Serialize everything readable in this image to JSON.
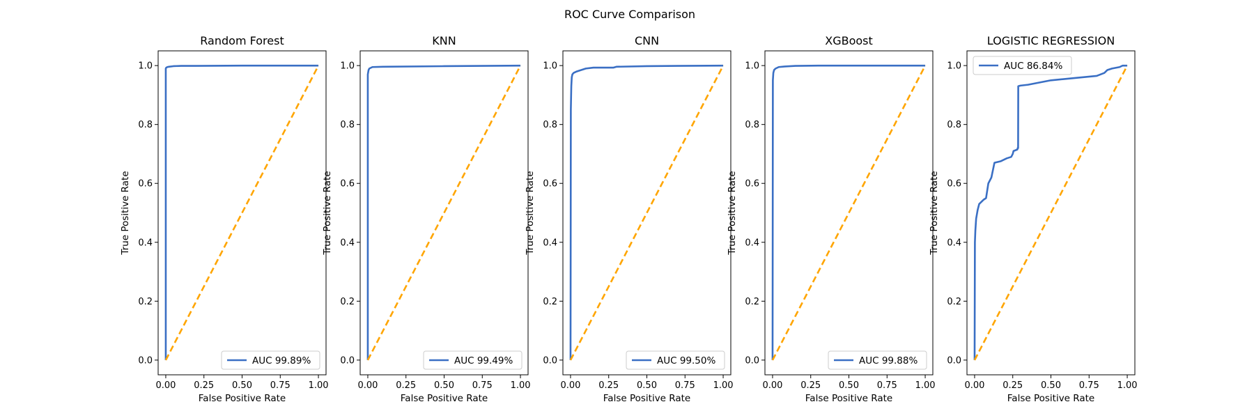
{
  "figure": {
    "suptitle": "ROC Curve Comparison"
  },
  "colors": {
    "roc": "#3a6fc4",
    "baseline": "#ffa500",
    "axes": "#000000",
    "legend_border": "#cccccc"
  },
  "chart_data": [
    {
      "type": "line",
      "title": "Random Forest",
      "xlabel": "False Positive Rate",
      "ylabel": "True Positive Rate",
      "xlim": [
        -0.05,
        1.05
      ],
      "ylim": [
        -0.05,
        1.05
      ],
      "xticks": [
        "0.00",
        "0.25",
        "0.50",
        "0.75",
        "1.00"
      ],
      "yticks": [
        "0.0",
        "0.2",
        "0.4",
        "0.6",
        "0.8",
        "1.0"
      ],
      "legend_position": "lower-right",
      "grid": false,
      "series": [
        {
          "name": "AUC 99.89%",
          "style": "solid",
          "x": [
            0,
            0,
            0.003,
            0.01,
            0.02,
            0.05,
            0.1,
            0.2,
            0.5,
            1.0
          ],
          "y": [
            0,
            0.99,
            0.993,
            0.995,
            0.996,
            0.998,
            0.999,
            0.999,
            1.0,
            1.0
          ]
        },
        {
          "name": "",
          "style": "dashed",
          "x": [
            0,
            1
          ],
          "y": [
            0,
            1
          ]
        }
      ]
    },
    {
      "type": "line",
      "title": "KNN",
      "xlabel": "False Positive Rate",
      "ylabel": "True Positive Rate",
      "xlim": [
        -0.05,
        1.05
      ],
      "ylim": [
        -0.05,
        1.05
      ],
      "xticks": [
        "0.00",
        "0.25",
        "0.50",
        "0.75",
        "1.00"
      ],
      "yticks": [
        "0.0",
        "0.2",
        "0.4",
        "0.6",
        "0.8",
        "1.0"
      ],
      "legend_position": "lower-right",
      "grid": false,
      "series": [
        {
          "name": "AUC 99.49%",
          "style": "solid",
          "x": [
            0,
            0,
            0.005,
            0.01,
            0.03,
            0.1,
            0.5,
            1.0
          ],
          "y": [
            0,
            0.97,
            0.985,
            0.99,
            0.995,
            0.996,
            0.998,
            1.0
          ]
        },
        {
          "name": "",
          "style": "dashed",
          "x": [
            0,
            1
          ],
          "y": [
            0,
            1
          ]
        }
      ]
    },
    {
      "type": "line",
      "title": "CNN",
      "xlabel": "False Positive Rate",
      "ylabel": "True Positive Rate",
      "xlim": [
        -0.05,
        1.05
      ],
      "ylim": [
        -0.05,
        1.05
      ],
      "xticks": [
        "0.00",
        "0.25",
        "0.50",
        "0.75",
        "1.00"
      ],
      "yticks": [
        "0.0",
        "0.2",
        "0.4",
        "0.6",
        "0.8",
        "1.0"
      ],
      "legend_position": "lower-right",
      "grid": false,
      "series": [
        {
          "name": "AUC 99.50%",
          "style": "solid",
          "x": [
            0,
            0.002,
            0.005,
            0.008,
            0.012,
            0.02,
            0.04,
            0.07,
            0.1,
            0.15,
            0.28,
            0.3,
            0.5,
            0.7,
            1.0
          ],
          "y": [
            0,
            0.85,
            0.93,
            0.96,
            0.97,
            0.975,
            0.98,
            0.985,
            0.99,
            0.993,
            0.993,
            0.996,
            0.998,
            0.999,
            1.0
          ]
        },
        {
          "name": "",
          "style": "dashed",
          "x": [
            0,
            1
          ],
          "y": [
            0,
            1
          ]
        }
      ]
    },
    {
      "type": "line",
      "title": "XGBoost",
      "xlabel": "False Positive Rate",
      "ylabel": "True Positive Rate",
      "xlim": [
        -0.05,
        1.05
      ],
      "ylim": [
        -0.05,
        1.05
      ],
      "xticks": [
        "0.00",
        "0.25",
        "0.50",
        "0.75",
        "1.00"
      ],
      "yticks": [
        "0.0",
        "0.2",
        "0.4",
        "0.6",
        "0.8",
        "1.0"
      ],
      "legend_position": "lower-right",
      "grid": false,
      "series": [
        {
          "name": "AUC 99.88%",
          "style": "solid",
          "x": [
            0,
            0.002,
            0.005,
            0.01,
            0.02,
            0.04,
            0.08,
            0.15,
            0.3,
            1.0
          ],
          "y": [
            0,
            0.95,
            0.975,
            0.985,
            0.99,
            0.995,
            0.997,
            0.999,
            1.0,
            1.0
          ]
        },
        {
          "name": "",
          "style": "dashed",
          "x": [
            0,
            1
          ],
          "y": [
            0,
            1
          ]
        }
      ]
    },
    {
      "type": "line",
      "title": "LOGISTIC REGRESSION",
      "xlabel": "False Positive Rate",
      "ylabel": "True Positive Rate",
      "xlim": [
        -0.05,
        1.05
      ],
      "ylim": [
        -0.05,
        1.05
      ],
      "xticks": [
        "0.00",
        "0.25",
        "0.50",
        "0.75",
        "1.00"
      ],
      "yticks": [
        "0.0",
        "0.2",
        "0.4",
        "0.6",
        "0.8",
        "1.0"
      ],
      "legend_position": "upper-left",
      "grid": false,
      "series": [
        {
          "name": "AUC 86.84%",
          "style": "solid",
          "x": [
            0,
            0.002,
            0.005,
            0.01,
            0.02,
            0.03,
            0.05,
            0.06,
            0.075,
            0.09,
            0.1,
            0.11,
            0.13,
            0.17,
            0.21,
            0.24,
            0.25,
            0.255,
            0.28,
            0.282,
            0.285,
            0.286,
            0.3,
            0.35,
            0.4,
            0.5,
            0.6,
            0.7,
            0.8,
            0.85,
            0.87,
            0.9,
            0.95,
            0.97,
            1.0
          ],
          "y": [
            0,
            0.4,
            0.44,
            0.48,
            0.51,
            0.53,
            0.54,
            0.545,
            0.55,
            0.6,
            0.61,
            0.62,
            0.67,
            0.675,
            0.685,
            0.69,
            0.7,
            0.71,
            0.715,
            0.72,
            0.72,
            0.93,
            0.932,
            0.935,
            0.94,
            0.95,
            0.955,
            0.96,
            0.965,
            0.975,
            0.985,
            0.99,
            0.995,
            1.0,
            1.0
          ]
        },
        {
          "name": "",
          "style": "dashed",
          "x": [
            0,
            1
          ],
          "y": [
            0,
            1
          ]
        }
      ]
    }
  ]
}
